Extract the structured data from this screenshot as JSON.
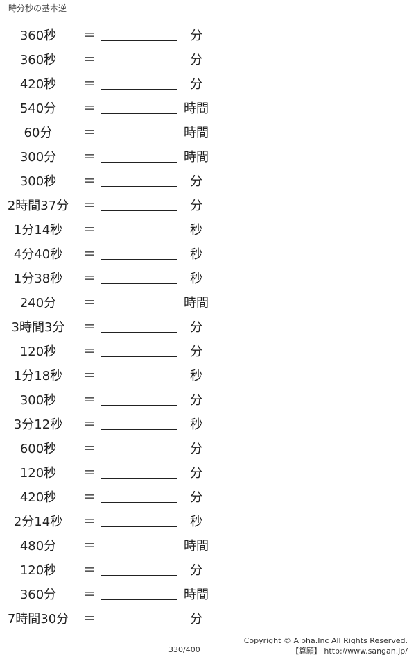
{
  "header": {
    "title": "時分秒の基本逆"
  },
  "equals": "＝",
  "rows": [
    {
      "q": "360秒",
      "unit": "分"
    },
    {
      "q": "360秒",
      "unit": "分"
    },
    {
      "q": "420秒",
      "unit": "分"
    },
    {
      "q": "540分",
      "unit": "時間"
    },
    {
      "q": "60分",
      "unit": "時間"
    },
    {
      "q": "300分",
      "unit": "時間"
    },
    {
      "q": "300秒",
      "unit": "分"
    },
    {
      "q": "2時間37分",
      "unit": "分"
    },
    {
      "q": "1分14秒",
      "unit": "秒"
    },
    {
      "q": "4分40秒",
      "unit": "秒"
    },
    {
      "q": "1分38秒",
      "unit": "秒"
    },
    {
      "q": "240分",
      "unit": "時間"
    },
    {
      "q": "3時間3分",
      "unit": "分"
    },
    {
      "q": "120秒",
      "unit": "分"
    },
    {
      "q": "1分18秒",
      "unit": "秒"
    },
    {
      "q": "300秒",
      "unit": "分"
    },
    {
      "q": "3分12秒",
      "unit": "秒"
    },
    {
      "q": "600秒",
      "unit": "分"
    },
    {
      "q": "120秒",
      "unit": "分"
    },
    {
      "q": "420秒",
      "unit": "分"
    },
    {
      "q": "2分14秒",
      "unit": "秒"
    },
    {
      "q": "480分",
      "unit": "時間"
    },
    {
      "q": "120秒",
      "unit": "分"
    },
    {
      "q": "360分",
      "unit": "時間"
    },
    {
      "q": "7時間30分",
      "unit": "分"
    }
  ],
  "footer": {
    "page": "330/400",
    "copyright": "Copyright © Alpha.Inc All Rights Reserved.",
    "site": "【算願】 http://www.sangan.jp/"
  }
}
